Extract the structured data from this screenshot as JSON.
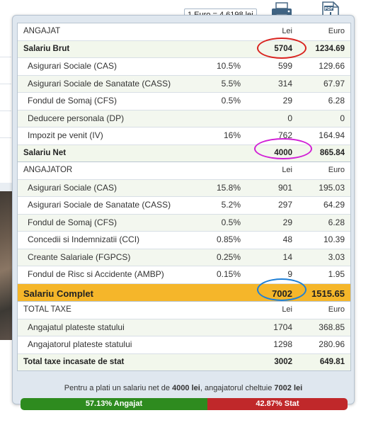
{
  "rate_label": "1 Euro = 4.6198 lei",
  "colors": {
    "red_ring": "#d9231f",
    "magenta_ring": "#d11fd6",
    "blue_ring": "#1e7fd6",
    "complet_bg": "#f5b62a",
    "angajat_bar": "#2e8b1f",
    "stat_bar": "#c0282a"
  },
  "icons": {
    "print": "printer-icon",
    "pdf": "pdf-icon"
  },
  "angajat": {
    "header": {
      "label": "ANGAJAT",
      "lei": "Lei",
      "euro": "Euro"
    },
    "brut": {
      "label": "Salariu Brut",
      "lei": "5704",
      "euro": "1234.69"
    },
    "rows": [
      {
        "label": "Asigurari Sociale (CAS)",
        "pct": "10.5%",
        "lei": "599",
        "euro": "129.66"
      },
      {
        "label": "Asigurari Sociale de Sanatate (CASS)",
        "pct": "5.5%",
        "lei": "314",
        "euro": "67.97"
      },
      {
        "label": "Fondul de Somaj (CFS)",
        "pct": "0.5%",
        "lei": "29",
        "euro": "6.28"
      },
      {
        "label": "Deducere personala (DP)",
        "pct": "",
        "lei": "0",
        "euro": "0"
      },
      {
        "label": "Impozit pe venit (IV)",
        "pct": "16%",
        "lei": "762",
        "euro": "164.94"
      }
    ],
    "net": {
      "label": "Salariu Net",
      "lei": "4000",
      "euro": "865.84"
    }
  },
  "angajator": {
    "header": {
      "label": "ANGAJATOR",
      "lei": "Lei",
      "euro": "Euro"
    },
    "rows": [
      {
        "label": "Asigurari Sociale (CAS)",
        "pct": "15.8%",
        "lei": "901",
        "euro": "195.03"
      },
      {
        "label": "Asigurari Sociale de Sanatate (CASS)",
        "pct": "5.2%",
        "lei": "297",
        "euro": "64.29"
      },
      {
        "label": "Fondul de Somaj (CFS)",
        "pct": "0.5%",
        "lei": "29",
        "euro": "6.28"
      },
      {
        "label": "Concedii si Indemnizatii (CCI)",
        "pct": "0.85%",
        "lei": "48",
        "euro": "10.39"
      },
      {
        "label": "Creante Salariale (FGPCS)",
        "pct": "0.25%",
        "lei": "14",
        "euro": "3.03"
      },
      {
        "label": "Fondul de Risc si Accidente (AMBP)",
        "pct": "0.15%",
        "lei": "9",
        "euro": "1.95"
      }
    ],
    "complet": {
      "label": "Salariu Complet",
      "lei": "7002",
      "euro": "1515.65"
    }
  },
  "taxe": {
    "header": {
      "label": "TOTAL TAXE",
      "lei": "Lei",
      "euro": "Euro"
    },
    "rows": [
      {
        "label": "Angajatul plateste statului",
        "lei": "1704",
        "euro": "368.85"
      },
      {
        "label": "Angajatorul plateste statului",
        "lei": "1298",
        "euro": "280.96"
      }
    ],
    "total": {
      "label": "Total taxe incasate de stat",
      "lei": "3002",
      "euro": "649.81"
    }
  },
  "summary": {
    "prefix": "Pentru a plati un salariu net de",
    "net": "4000 lei",
    "middle": ", angajatorul cheltuie",
    "cost": "7002 lei"
  },
  "bar": {
    "angajat_label": "57.13% Angajat",
    "stat_label": "42.87% Stat",
    "angajat_fraction": 0.5713
  }
}
